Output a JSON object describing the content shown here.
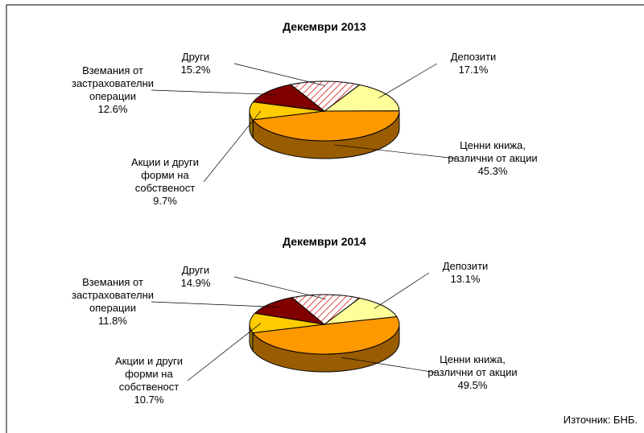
{
  "chart_data": [
    {
      "type": "pie3d",
      "title": "Декември 2013",
      "categories": [
        "Депозити",
        "Ценни книжа,\nразлични от акции",
        "Акции и други\nформи на\nсобственост",
        "Вземания от\nзастрахователни\nоперации",
        "Други"
      ],
      "values": [
        17.1,
        45.3,
        9.7,
        12.6,
        15.2
      ],
      "value_labels": [
        "17.1%",
        "45.3%",
        "9.7%",
        "12.6%",
        "15.2%"
      ],
      "colors": [
        "#ffff99",
        "#ff9900",
        "#ffcc00",
        "#800000",
        "#e04848"
      ],
      "hatched": [
        false,
        false,
        false,
        false,
        true
      ]
    },
    {
      "type": "pie3d",
      "title": "Декември 2014",
      "categories": [
        "Депозити",
        "Ценни книжа,\nразлични от акции",
        "Акции и други\nформи на\nсобственост",
        "Вземания от\nзастрахователни\nоперации",
        "Други"
      ],
      "values": [
        13.1,
        49.5,
        10.7,
        11.8,
        14.9
      ],
      "value_labels": [
        "13.1%",
        "49.5%",
        "10.7%",
        "11.8%",
        "14.9%"
      ],
      "colors": [
        "#ffff99",
        "#ff9900",
        "#ffcc00",
        "#800000",
        "#e04848"
      ],
      "hatched": [
        false,
        false,
        false,
        false,
        true
      ]
    }
  ],
  "source": "Източник: БНБ."
}
